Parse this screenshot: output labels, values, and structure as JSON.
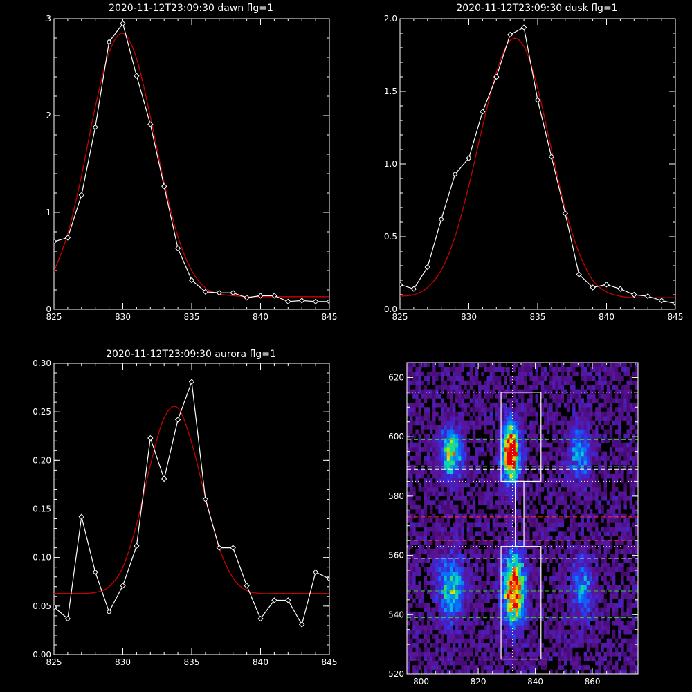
{
  "colors": {
    "background": "#000000",
    "axes": "#ffffff",
    "data": "#ffffff",
    "fit": "#cc0000",
    "green_lines": "#33cc33",
    "red_lines": "#ff3333",
    "white_lines": "#ffffff"
  },
  "chart_data": [
    {
      "type": "line",
      "title": "2020-11-12T23:09:30 dawn flg=1",
      "xlim": [
        825,
        845
      ],
      "ylim": [
        0,
        3
      ],
      "xticks": [
        825,
        830,
        835,
        840,
        845
      ],
      "yticks": [
        0,
        1,
        2,
        3
      ],
      "ytick_labels": [
        "0",
        "1",
        "2",
        "3"
      ],
      "series": [
        {
          "role": "data",
          "marker": "diamond",
          "x": [
            825,
            826,
            827,
            828,
            829,
            830,
            831,
            832,
            833,
            834,
            835,
            836,
            837,
            838,
            839,
            840,
            841,
            842,
            843,
            844,
            845
          ],
          "y": [
            0.7,
            0.74,
            1.18,
            1.88,
            2.76,
            2.95,
            2.41,
            1.91,
            1.27,
            0.63,
            0.3,
            0.18,
            0.17,
            0.17,
            0.12,
            0.14,
            0.14,
            0.08,
            0.09,
            0.08,
            0.08
          ]
        },
        {
          "role": "fit",
          "x": [
            825,
            826,
            827,
            828,
            829,
            830,
            831,
            832,
            833,
            834,
            835,
            836,
            837,
            838,
            839,
            840,
            841,
            842,
            843,
            844,
            845
          ],
          "y": [
            0.39,
            0.78,
            1.38,
            2.09,
            2.65,
            2.85,
            2.59,
            1.99,
            1.31,
            0.75,
            0.4,
            0.22,
            0.16,
            0.14,
            0.13,
            0.13,
            0.13,
            0.13,
            0.13,
            0.13,
            0.13
          ]
        }
      ]
    },
    {
      "type": "line",
      "title": "2020-11-12T23:09:30 dusk flg=1",
      "xlim": [
        825,
        845
      ],
      "ylim": [
        0,
        2
      ],
      "xticks": [
        825,
        830,
        835,
        840,
        845
      ],
      "yticks": [
        0,
        0.5,
        1,
        1.5,
        2
      ],
      "ytick_labels": [
        "0.0",
        "0.5",
        "1.0",
        "1.5",
        "2.0"
      ],
      "series": [
        {
          "role": "data",
          "marker": "diamond",
          "x": [
            825,
            826,
            827,
            828,
            829,
            830,
            831,
            832,
            833,
            834,
            835,
            836,
            837,
            838,
            839,
            840,
            841,
            842,
            843,
            844,
            845
          ],
          "y": [
            0.17,
            0.14,
            0.29,
            0.62,
            0.93,
            1.04,
            1.36,
            1.6,
            1.89,
            1.94,
            1.44,
            1.05,
            0.66,
            0.24,
            0.15,
            0.17,
            0.14,
            0.1,
            0.09,
            0.06,
            0.04
          ]
        },
        {
          "role": "fit",
          "x": [
            825,
            826,
            827,
            828,
            829,
            830,
            831,
            832,
            833,
            834,
            835,
            836,
            837,
            838,
            839,
            840,
            841,
            842,
            843,
            844,
            845
          ],
          "y": [
            0.09,
            0.1,
            0.15,
            0.27,
            0.5,
            0.85,
            1.26,
            1.63,
            1.85,
            1.81,
            1.52,
            1.1,
            0.69,
            0.39,
            0.2,
            0.12,
            0.09,
            0.08,
            0.08,
            0.08,
            0.08
          ]
        }
      ]
    },
    {
      "type": "line",
      "title": "2020-11-12T23:09:30 aurora flg=1",
      "xlim": [
        825,
        845
      ],
      "ylim": [
        0,
        0.3
      ],
      "xticks": [
        825,
        830,
        835,
        840,
        845
      ],
      "yticks": [
        0,
        0.05,
        0.1,
        0.15,
        0.2,
        0.25,
        0.3
      ],
      "ytick_labels": [
        "0.00",
        "0.05",
        "0.10",
        "0.15",
        "0.20",
        "0.25",
        "0.30"
      ],
      "series": [
        {
          "role": "data",
          "marker": "diamond",
          "x": [
            825,
            826,
            827,
            828,
            829,
            830,
            831,
            832,
            833,
            834,
            835,
            836,
            837,
            838,
            839,
            840,
            841,
            842,
            843,
            844,
            845
          ],
          "y": [
            0.049,
            0.037,
            0.142,
            0.085,
            0.044,
            0.071,
            0.112,
            0.223,
            0.181,
            0.242,
            0.281,
            0.16,
            0.11,
            0.11,
            0.071,
            0.037,
            0.056,
            0.056,
            0.031,
            0.085,
            0.078
          ]
        },
        {
          "role": "fit",
          "x": [
            825,
            826,
            827,
            828,
            829,
            830,
            831,
            832,
            833,
            834,
            835,
            836,
            837,
            838,
            839,
            840,
            841,
            842,
            843,
            844,
            845
          ],
          "y": [
            0.063,
            0.063,
            0.063,
            0.064,
            0.07,
            0.09,
            0.134,
            0.195,
            0.244,
            0.254,
            0.218,
            0.162,
            0.11,
            0.079,
            0.066,
            0.063,
            0.063,
            0.063,
            0.063,
            0.063,
            0.063
          ]
        }
      ]
    },
    {
      "type": "heatmap",
      "title": "",
      "xlim": [
        795,
        876
      ],
      "ylim": [
        520,
        625
      ],
      "xticks": [
        800,
        820,
        840,
        860
      ],
      "yticks": [
        520,
        540,
        560,
        580,
        600,
        620
      ],
      "colormap": "rainbow",
      "blobs": [
        {
          "x": 810,
          "y": 594,
          "sx": 2.5,
          "sy": 5.5,
          "amp": 0.55
        },
        {
          "x": 831,
          "y": 594,
          "sx": 2.0,
          "sy": 6.5,
          "amp": 1.0
        },
        {
          "x": 855,
          "y": 594,
          "sx": 2.5,
          "sy": 6.0,
          "amp": 0.35
        },
        {
          "x": 810,
          "y": 548,
          "sx": 3.0,
          "sy": 7.0,
          "amp": 0.45
        },
        {
          "x": 832,
          "y": 548,
          "sx": 2.5,
          "sy": 8.0,
          "amp": 0.9
        },
        {
          "x": 856,
          "y": 548,
          "sx": 2.5,
          "sy": 7.0,
          "amp": 0.32
        }
      ],
      "boxes": [
        {
          "x0": 828,
          "x1": 842,
          "y0": 585,
          "y1": 615
        },
        {
          "x0": 833,
          "x1": 836,
          "y0": 563,
          "y1": 585
        },
        {
          "x0": 828,
          "x1": 842,
          "y0": 525,
          "y1": 563
        }
      ],
      "vertical_dotted": [
        830,
        832
      ],
      "horizontal_dotted": [
        615,
        585,
        563,
        525
      ],
      "green_dashed": [
        599,
        590,
        548,
        539
      ],
      "white_dashed": [
        589,
        559
      ],
      "red_dashed": [
        573,
        565
      ]
    }
  ]
}
